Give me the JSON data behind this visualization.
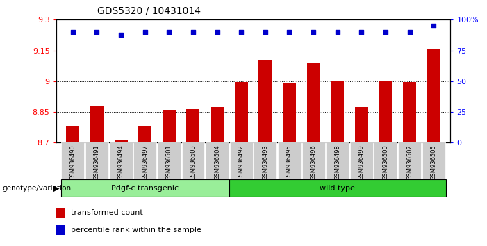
{
  "title": "GDS5320 / 10431014",
  "samples": [
    "GSM936490",
    "GSM936491",
    "GSM936494",
    "GSM936497",
    "GSM936501",
    "GSM936503",
    "GSM936504",
    "GSM936492",
    "GSM936493",
    "GSM936495",
    "GSM936496",
    "GSM936498",
    "GSM936499",
    "GSM936500",
    "GSM936502",
    "GSM936505"
  ],
  "bar_values": [
    8.78,
    8.88,
    8.71,
    8.78,
    8.86,
    8.865,
    8.875,
    8.995,
    9.1,
    8.99,
    9.09,
    9.0,
    8.875,
    9.0,
    8.995,
    9.155
  ],
  "percentile_values": [
    90,
    90,
    88,
    90,
    90,
    90,
    90,
    90,
    90,
    90,
    90,
    90,
    90,
    90,
    90,
    95
  ],
  "bar_color": "#cc0000",
  "percentile_color": "#0000cc",
  "ylim_left": [
    8.7,
    9.3
  ],
  "ylim_right": [
    0,
    100
  ],
  "yticks_left": [
    8.7,
    8.85,
    9.0,
    9.15,
    9.3
  ],
  "yticks_right": [
    0,
    25,
    50,
    75,
    100
  ],
  "ytick_labels_left": [
    "8.7",
    "8.85",
    "9",
    "9.15",
    "9.3"
  ],
  "ytick_labels_right": [
    "0",
    "25",
    "50",
    "75",
    "100%"
  ],
  "hlines": [
    8.85,
    9.0,
    9.15
  ],
  "group1_label": "Pdgf-c transgenic",
  "group2_label": "wild type",
  "group1_count": 7,
  "group2_count": 9,
  "group1_color": "#99ee99",
  "group2_color": "#33cc33",
  "genotype_label": "genotype/variation",
  "legend1_label": "transformed count",
  "legend2_label": "percentile rank within the sample",
  "bg_color": "#ffffff",
  "plot_bg_color": "#ffffff",
  "xticklabel_bg": "#cccccc"
}
